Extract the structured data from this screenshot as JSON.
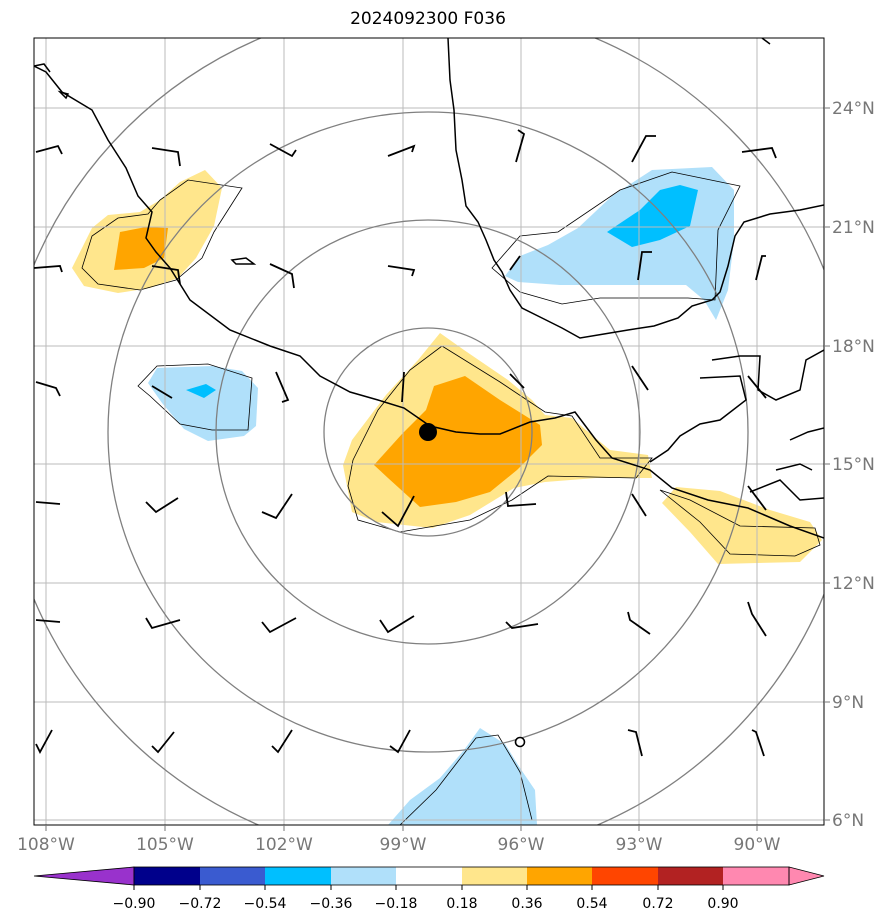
{
  "title": "2024092300 F036",
  "map": {
    "lon_ticks": [
      "108°W",
      "105°W",
      "102°W",
      "99°W",
      "96°W",
      "93°W",
      "90°W"
    ],
    "lat_ticks": [
      "24°N",
      "21°N",
      "18°N",
      "15°N",
      "12°N",
      "9°N",
      "6°N"
    ],
    "colors": {
      "grid": "#bbbbbb",
      "range_rings": "#808080",
      "coast": "#000000",
      "storm_center": "#000000"
    }
  },
  "colorbar": {
    "levels": [
      "−0.90",
      "−0.72",
      "−0.54",
      "−0.36",
      "−0.18",
      "0.18",
      "0.36",
      "0.54",
      "0.72",
      "0.90"
    ],
    "colors": [
      "#9932cc",
      "#00008b",
      "#3a5bd0",
      "#00bfff",
      "#b0e0fa",
      "#ffffff",
      "#ffe68c",
      "#ffa500",
      "#ff4500",
      "#b22222",
      "#ff88b0"
    ]
  }
}
